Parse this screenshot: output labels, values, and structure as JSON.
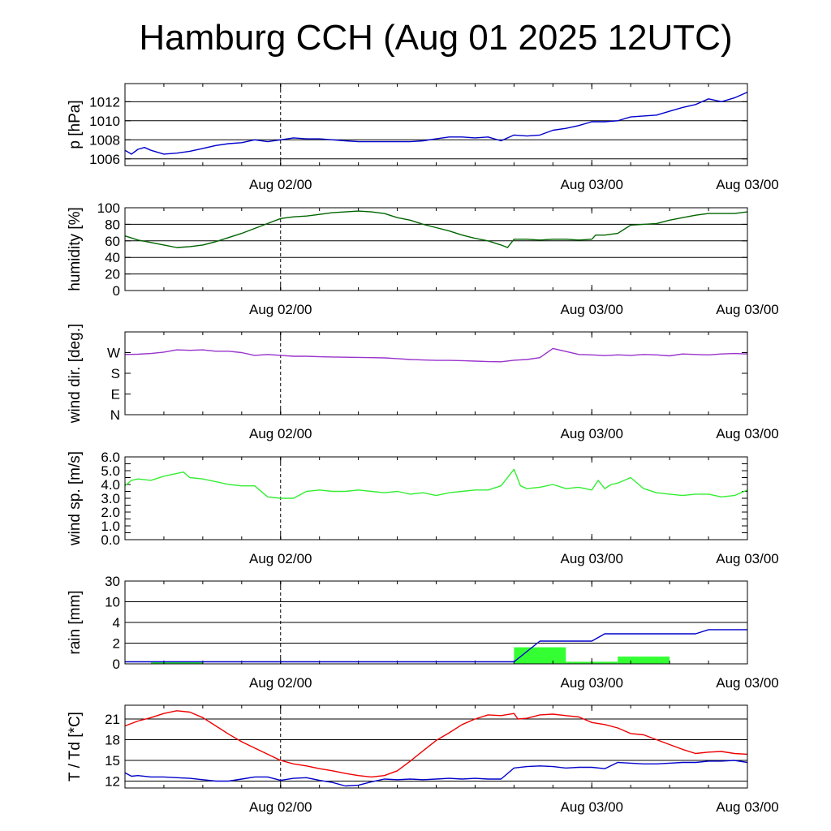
{
  "title": "Hamburg CCH (Aug 01 2025 12UTC)",
  "colors": {
    "pressure": "#0000cc",
    "humidity": "#006400",
    "wind_dir": "#9933cc",
    "wind_speed": "#33ee33",
    "rain_bar": "#33ff33",
    "rain_total": "#0000cc",
    "temperature": "#ee0000",
    "dewpoint": "#0000cc",
    "grid": "#000000"
  },
  "chart_data": [
    {
      "id": "pressure",
      "type": "line",
      "ylabel": "p [hPa]",
      "x_ticks": [
        "Aug 02/00",
        "Aug 03/00"
      ],
      "ylim": [
        1005.3,
        1013.9
      ],
      "yticks": [
        1006,
        1008,
        1010,
        1012
      ],
      "ytick_labels": [
        "1006",
        "1008",
        "1010",
        "1012"
      ],
      "grid": true,
      "x_unit": "hours since Aug 01 12UTC",
      "series": [
        {
          "name": "",
          "color_key": "pressure",
          "x": [
            0,
            0.5,
            1,
            1.5,
            2,
            3,
            4,
            5,
            6,
            7,
            8,
            9,
            10,
            11,
            12,
            13,
            14,
            15,
            16,
            17,
            18,
            19,
            20,
            21,
            22,
            23,
            24,
            25,
            26,
            27,
            28,
            29,
            30,
            31,
            32,
            33,
            34,
            35,
            36,
            37,
            38,
            39,
            40,
            41,
            42,
            43,
            44,
            45,
            46,
            47,
            48
          ],
          "y": [
            1006.9,
            1006.5,
            1007.0,
            1007.2,
            1006.9,
            1006.5,
            1006.6,
            1006.8,
            1007.1,
            1007.4,
            1007.6,
            1007.7,
            1008.0,
            1007.8,
            1008.0,
            1008.2,
            1008.1,
            1008.1,
            1008.0,
            1007.9,
            1007.8,
            1007.8,
            1007.8,
            1007.8,
            1007.8,
            1007.9,
            1008.1,
            1008.3,
            1008.3,
            1008.2,
            1008.3,
            1007.9,
            1008.5,
            1008.4,
            1008.5,
            1009.0,
            1009.2,
            1009.5,
            1009.9,
            1009.9,
            1010.0,
            1010.4,
            1010.5,
            1010.6,
            1011.0,
            1011.4,
            1011.7,
            1012.3,
            1012.0,
            1012.4,
            1013.0
          ]
        }
      ]
    },
    {
      "id": "humidity",
      "type": "line",
      "ylabel": "humidity [%]",
      "x_ticks": [
        "Aug 02/00",
        "Aug 03/00"
      ],
      "ylim": [
        0,
        100
      ],
      "yticks": [
        0,
        20,
        40,
        60,
        80,
        100
      ],
      "ytick_labels": [
        "0",
        "20",
        "40",
        "60",
        "80",
        "100"
      ],
      "grid": true,
      "series": [
        {
          "name": "",
          "color_key": "humidity",
          "x": [
            0,
            1,
            2,
            3,
            4,
            5,
            6,
            7,
            8,
            9,
            10,
            11,
            12,
            13,
            14,
            15,
            16,
            17,
            18,
            19,
            20,
            21,
            22,
            23,
            24,
            25,
            26,
            27,
            28,
            29,
            29.5,
            30,
            31,
            32,
            33,
            34,
            35,
            36,
            36.3,
            37,
            38,
            39,
            40,
            41,
            42,
            43,
            44,
            45,
            46,
            47,
            48
          ],
          "y": [
            66,
            61,
            58,
            55,
            52,
            53,
            55,
            59,
            64,
            69,
            75,
            81,
            87,
            89,
            90,
            92,
            94,
            95,
            96,
            95,
            93,
            88,
            85,
            80,
            76,
            72,
            67,
            63,
            60,
            55,
            52,
            62,
            62,
            61,
            62,
            62,
            61,
            62,
            67,
            67,
            69,
            79,
            80,
            81,
            85,
            88,
            91,
            93,
            93,
            93,
            95
          ]
        }
      ]
    },
    {
      "id": "wind_dir",
      "type": "line",
      "ylabel": "wind dir. [deg.]",
      "x_ticks": [
        "Aug 02/00",
        "Aug 03/00"
      ],
      "ylim": [
        0,
        360
      ],
      "yticks": [
        0,
        90,
        180,
        270
      ],
      "ytick_labels": [
        "N",
        "E",
        "S",
        "W"
      ],
      "grid": false,
      "series": [
        {
          "name": "",
          "color_key": "wind_dir",
          "x": [
            0,
            1,
            2,
            3,
            4,
            5,
            6,
            7,
            8,
            9,
            10,
            11,
            12,
            13,
            14,
            15,
            16,
            17,
            18,
            19,
            20,
            21,
            22,
            23,
            24,
            25,
            26,
            27,
            28,
            29,
            30,
            31,
            32,
            33,
            34,
            35,
            36,
            37,
            38,
            39,
            40,
            41,
            42,
            43,
            44,
            45,
            46,
            47,
            48
          ],
          "y": [
            262,
            263,
            266,
            272,
            282,
            280,
            282,
            276,
            276,
            270,
            258,
            262,
            258,
            254,
            254,
            252,
            251,
            250,
            249,
            248,
            247,
            244,
            240,
            238,
            236,
            236,
            235,
            233,
            231,
            230,
            237,
            240,
            248,
            288,
            275,
            262,
            260,
            257,
            260,
            258,
            262,
            260,
            256,
            264,
            262,
            260,
            264,
            266,
            264
          ]
        }
      ]
    },
    {
      "id": "wind_speed",
      "type": "line",
      "ylabel": "wind sp. [m/s]",
      "x_ticks": [
        "Aug 02/00",
        "Aug 03/00"
      ],
      "ylim": [
        0,
        6
      ],
      "yticks": [
        0,
        0.5,
        1,
        1.5,
        2,
        2.5,
        3,
        3.5,
        4,
        4.5,
        5,
        5.5,
        6
      ],
      "ytick_labels": [
        "0.0",
        "1.0",
        "2.0",
        "3.0",
        "4.0",
        "5.0",
        "6.0"
      ],
      "ytick_label_values": [
        0,
        1,
        2,
        3,
        4,
        5,
        6
      ],
      "grid": false,
      "series": [
        {
          "name": "",
          "color_key": "wind_speed",
          "x": [
            0,
            0.5,
            1,
            2,
            3,
            4,
            4.5,
            5,
            6,
            7,
            8,
            9,
            10,
            11,
            12,
            13,
            14,
            15,
            16,
            17,
            18,
            19,
            20,
            21,
            22,
            23,
            24,
            25,
            26,
            27,
            28,
            29,
            30,
            30.5,
            31,
            32,
            33,
            34,
            35,
            36,
            36.5,
            37,
            37.5,
            38,
            39,
            40,
            41,
            42,
            43,
            44,
            45,
            46,
            47,
            48
          ],
          "y": [
            3.9,
            4.3,
            4.4,
            4.3,
            4.6,
            4.8,
            4.9,
            4.5,
            4.4,
            4.2,
            4.0,
            3.9,
            3.9,
            3.1,
            3.0,
            3.0,
            3.5,
            3.6,
            3.5,
            3.5,
            3.6,
            3.5,
            3.4,
            3.5,
            3.3,
            3.4,
            3.2,
            3.4,
            3.5,
            3.6,
            3.6,
            3.9,
            5.1,
            3.9,
            3.7,
            3.8,
            4.0,
            3.7,
            3.8,
            3.6,
            4.3,
            3.7,
            4.0,
            4.1,
            4.5,
            3.7,
            3.4,
            3.3,
            3.2,
            3.3,
            3.3,
            3.1,
            3.2,
            3.6
          ]
        }
      ]
    },
    {
      "id": "rain",
      "type": "bar",
      "ylabel": "rain [mm]",
      "x_ticks": [
        "Aug 02/00",
        "Aug 03/00"
      ],
      "ylim": [
        0,
        30
      ],
      "scale": "nonlinear",
      "yticks": [
        0,
        2,
        4,
        10,
        30
      ],
      "ytick_labels": [
        "0",
        "2",
        "4",
        "10",
        "30"
      ],
      "grid": true,
      "bars": [
        {
          "start": 2,
          "end": 6,
          "value": 0.2
        },
        {
          "start": 30,
          "end": 34,
          "value": 1.6
        },
        {
          "start": 34,
          "end": 38,
          "value": 0.2
        },
        {
          "start": 38,
          "end": 42,
          "value": 0.7
        }
      ],
      "series": [
        {
          "name": "",
          "color_key": "rain_total",
          "x": [
            0,
            2,
            30,
            32,
            36,
            37,
            44,
            45,
            48
          ],
          "y": [
            0.2,
            0.2,
            0.2,
            2.2,
            2.2,
            2.9,
            2.9,
            3.3,
            3.3
          ]
        }
      ]
    },
    {
      "id": "temperature",
      "type": "line",
      "ylabel": "T / Td [*C]",
      "x_ticks": [
        "Aug 02/00",
        "Aug 03/00"
      ],
      "ylim": [
        11,
        23
      ],
      "yticks": [
        12,
        15,
        18,
        21
      ],
      "ytick_labels": [
        "12",
        "15",
        "18",
        "21"
      ],
      "grid": true,
      "series": [
        {
          "name": "",
          "color_key": "temperature",
          "x": [
            0,
            1,
            2,
            3,
            4,
            5,
            6,
            7,
            8,
            9,
            10,
            11,
            12,
            13,
            14,
            15,
            16,
            17,
            18,
            19,
            20,
            21,
            22,
            23,
            24,
            25,
            26,
            27,
            28,
            29,
            30,
            30.3,
            31,
            32,
            33,
            34,
            35,
            36,
            37,
            38,
            39,
            40,
            41,
            42,
            43,
            44,
            45,
            46,
            47,
            48
          ],
          "y": [
            20.0,
            20.7,
            21.2,
            21.8,
            22.2,
            22.0,
            21.2,
            20.0,
            18.8,
            17.7,
            16.8,
            15.9,
            15.0,
            14.5,
            14.2,
            13.8,
            13.5,
            13.1,
            12.8,
            12.6,
            12.8,
            13.5,
            14.9,
            16.4,
            17.9,
            19.0,
            20.2,
            21.0,
            21.6,
            21.5,
            21.8,
            21.0,
            21.1,
            21.6,
            21.7,
            21.5,
            21.3,
            20.5,
            20.2,
            19.7,
            18.9,
            18.7,
            18.0,
            17.3,
            16.6,
            16.0,
            16.2,
            16.3,
            16.0,
            15.9
          ]
        },
        {
          "name": "",
          "color_key": "dewpoint",
          "x": [
            0,
            0.5,
            1,
            2,
            3,
            4,
            5,
            6,
            7,
            8,
            9,
            10,
            11,
            12,
            13,
            14,
            15,
            16,
            17,
            18,
            19,
            20,
            21,
            22,
            23,
            24,
            25,
            26,
            27,
            28,
            29,
            30,
            31,
            32,
            33,
            34,
            35,
            36,
            37,
            38,
            39,
            40,
            41,
            42,
            43,
            44,
            45,
            46,
            47,
            48
          ],
          "y": [
            13.2,
            12.7,
            12.8,
            12.6,
            12.6,
            12.5,
            12.4,
            12.2,
            12.0,
            12.0,
            12.3,
            12.6,
            12.6,
            12.1,
            12.4,
            12.5,
            12.1,
            11.8,
            11.3,
            11.4,
            11.9,
            12.3,
            12.2,
            12.3,
            12.2,
            12.3,
            12.4,
            12.3,
            12.4,
            12.3,
            12.3,
            13.9,
            14.1,
            14.2,
            14.1,
            13.9,
            14.0,
            14.0,
            13.8,
            14.7,
            14.6,
            14.5,
            14.5,
            14.6,
            14.7,
            14.7,
            14.9,
            14.9,
            15.0,
            14.7
          ]
        }
      ]
    }
  ]
}
